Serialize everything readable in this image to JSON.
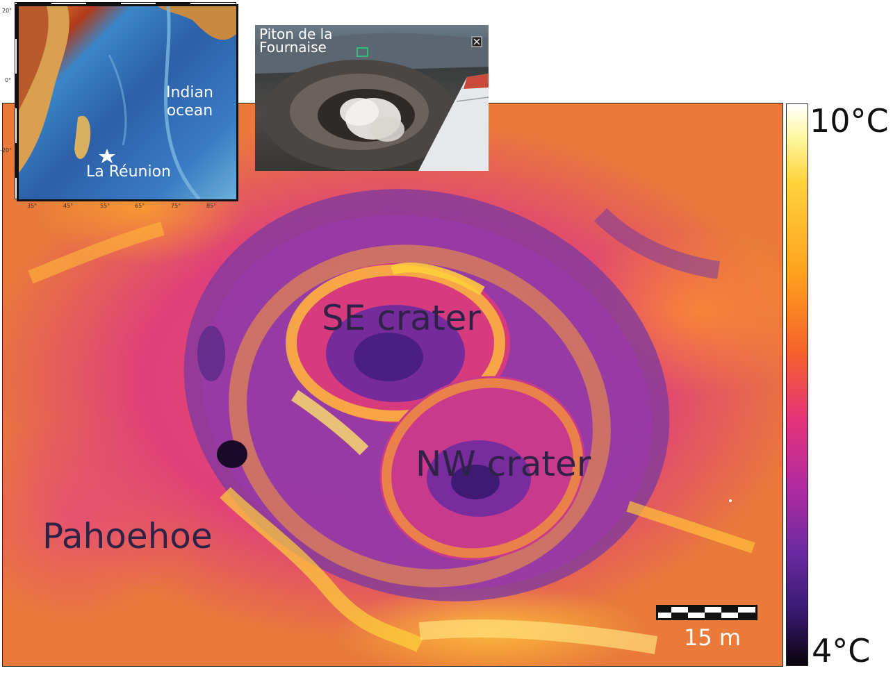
{
  "thermal_image": {
    "labels": {
      "se_crater": "SE crater",
      "nw_crater": "NW crater",
      "pahoehoe": "Pahoehoe"
    },
    "scale_bar": {
      "label": "15 m"
    }
  },
  "colorbar": {
    "max_label": "10°C",
    "min_label": "4°C",
    "colors": [
      "#ffffff",
      "#ffd23a",
      "#ffa21e",
      "#f5622a",
      "#e53478",
      "#b22aa0",
      "#6a2aa0",
      "#3a1a74",
      "#08040c"
    ]
  },
  "inset_map": {
    "ocean_label": "Indian\nocean",
    "island_label": "La Réunion",
    "lat_ticks": [
      "20°",
      "0°",
      "-20°"
    ],
    "lon_ticks": [
      "35°",
      "45°",
      "55°",
      "65°",
      "75°",
      "85°"
    ]
  },
  "inset_photo": {
    "title": "Piton de la\nFournaise"
  }
}
